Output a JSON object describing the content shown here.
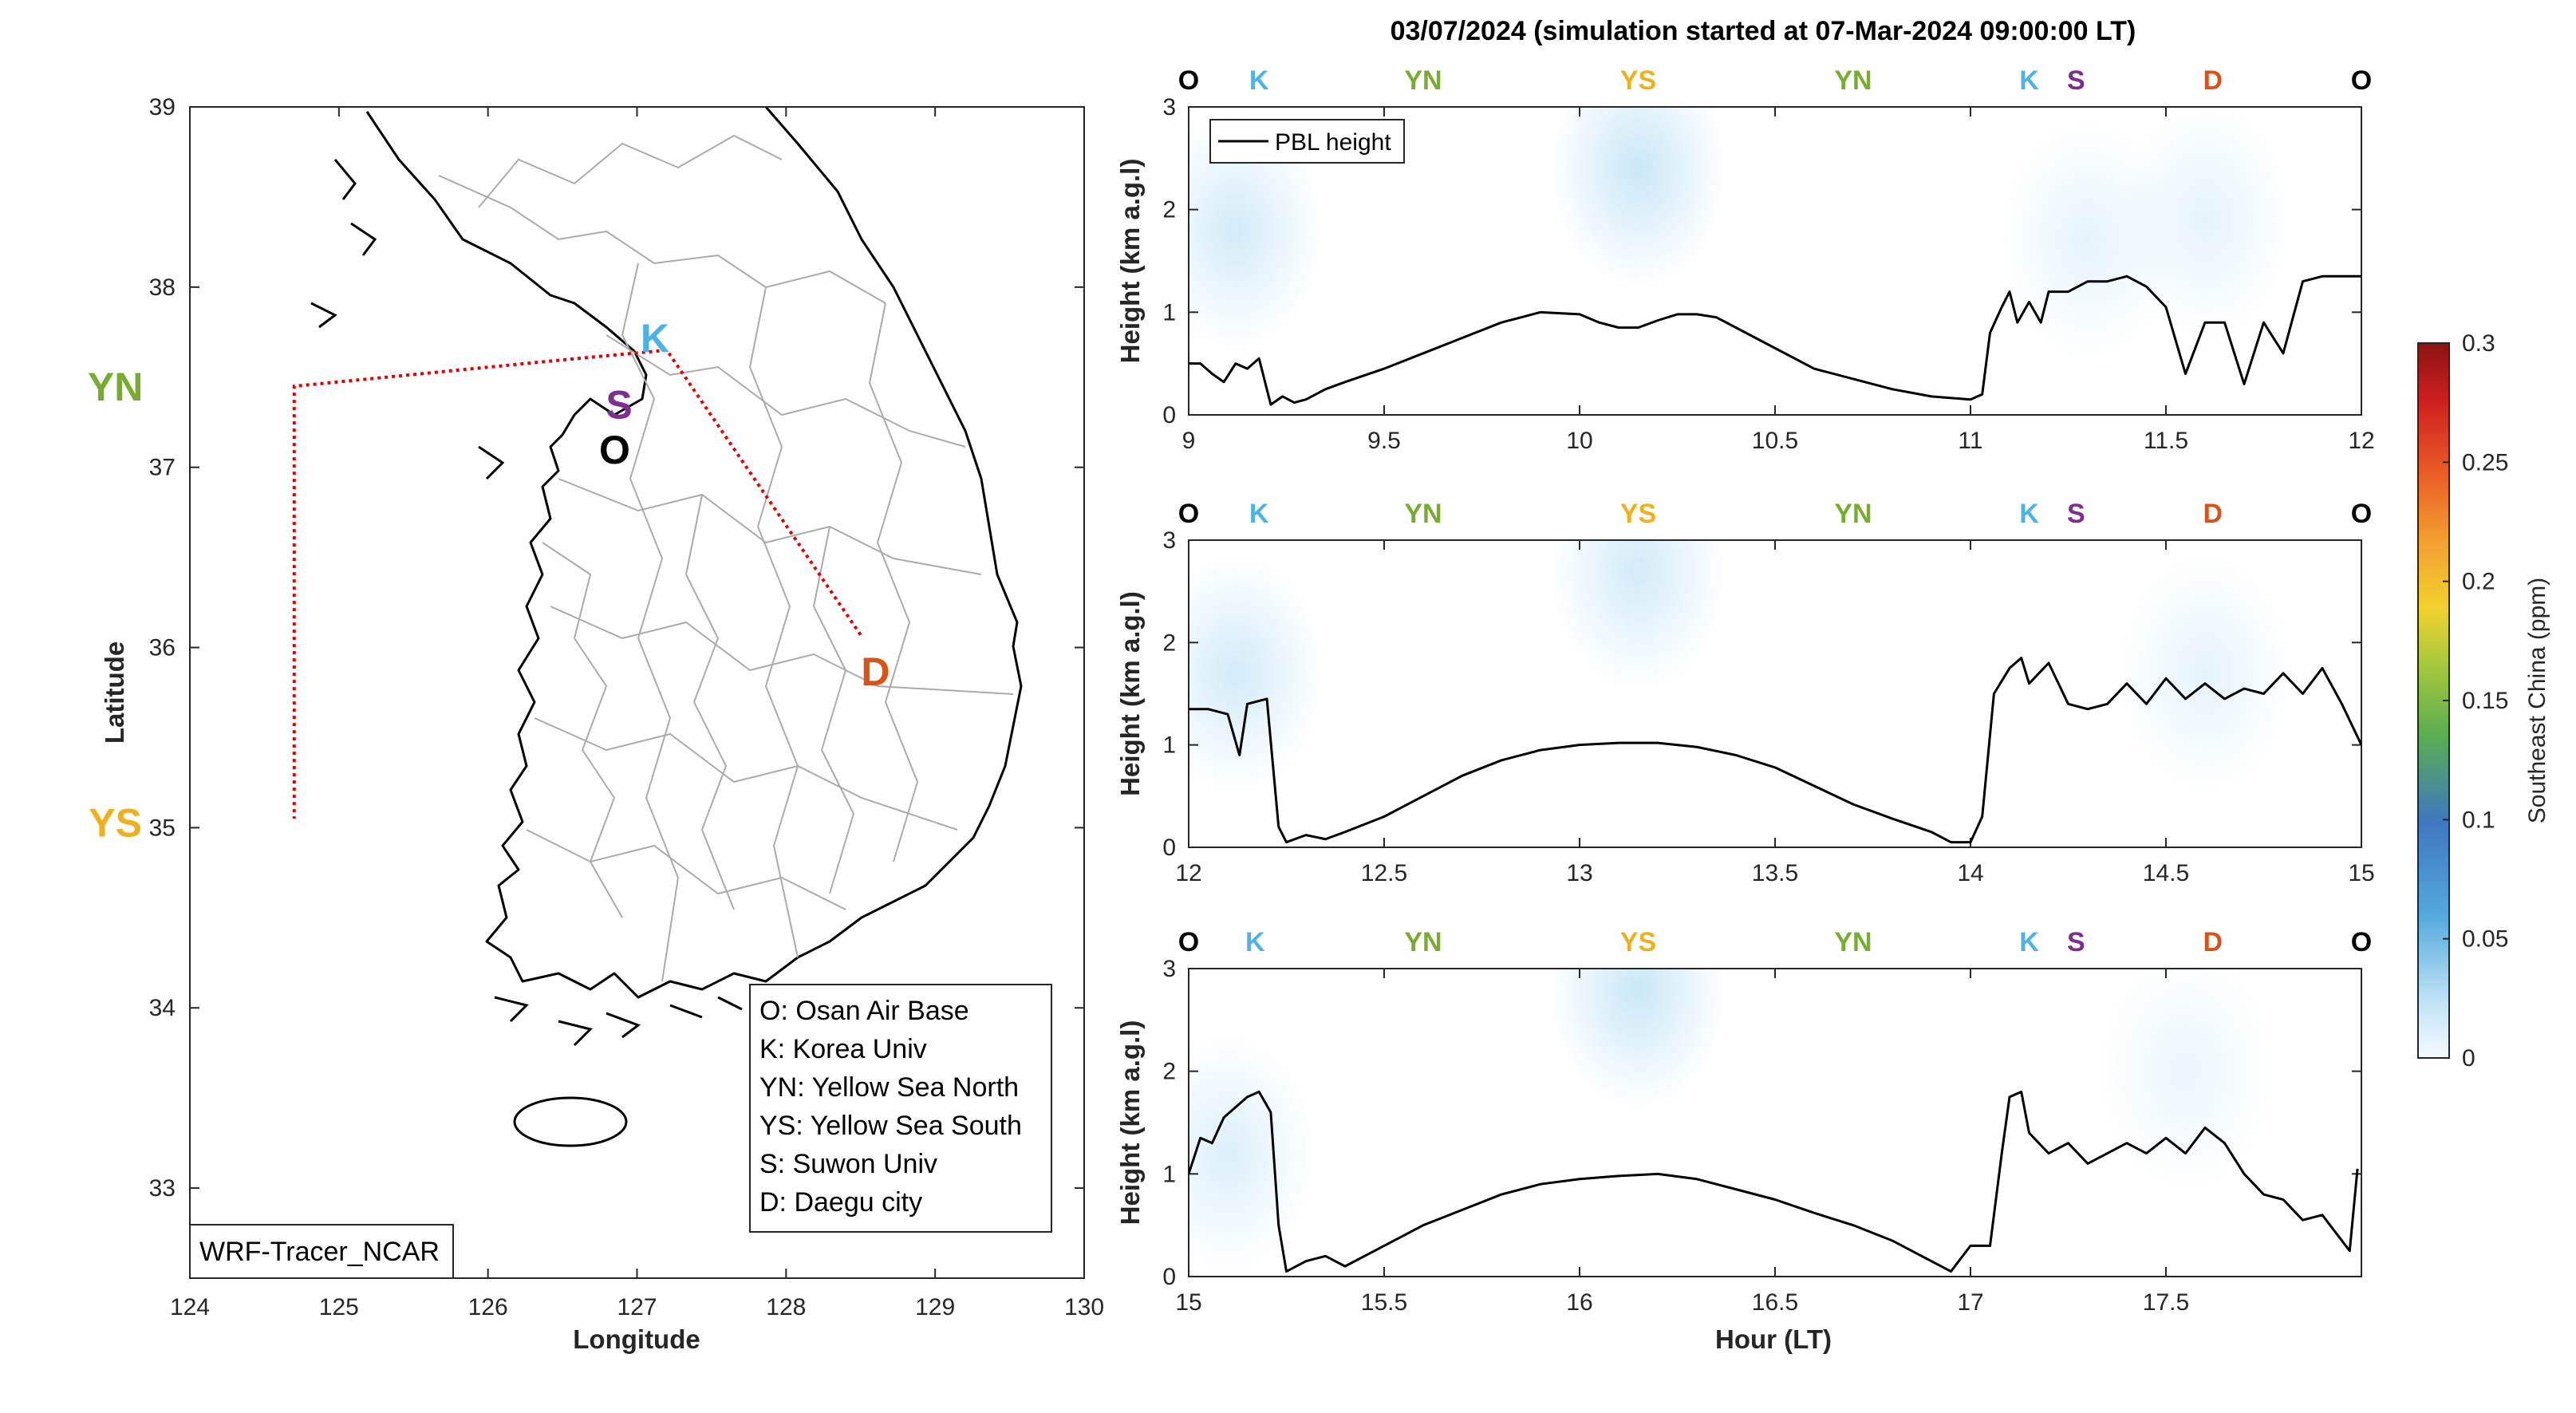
{
  "figure_title": "03/07/2024 (simulation started at 07-Mar-2024 09:00:00 LT)",
  "colors": {
    "O": "#000000",
    "K": "#4db3e6",
    "YN": "#77ac30",
    "YS": "#edb120",
    "S": "#7e2f8e",
    "D": "#d95319",
    "track": "#e00000",
    "pbl": "#000000"
  },
  "map": {
    "xlabel": "Longitude",
    "ylabel": "Latitude",
    "xticks": [
      "124",
      "125",
      "126",
      "127",
      "128",
      "129",
      "130"
    ],
    "yticks": [
      "33",
      "34",
      "35",
      "36",
      "37",
      "38",
      "39"
    ],
    "xlim": [
      124,
      130
    ],
    "ylim": [
      32.5,
      39
    ],
    "source_label": "WRF-Tracer_NCAR",
    "sites": [
      {
        "code": "O",
        "lon": 126.85,
        "lat": 37.1
      },
      {
        "code": "K",
        "lon": 127.12,
        "lat": 37.72
      },
      {
        "code": "YN",
        "lon": 123.5,
        "lat": 37.45
      },
      {
        "code": "YS",
        "lon": 123.5,
        "lat": 35.03
      },
      {
        "code": "S",
        "lon": 126.88,
        "lat": 37.35
      },
      {
        "code": "D",
        "lon": 128.6,
        "lat": 35.87
      }
    ],
    "flight_track": [
      [
        128.5,
        36.07
      ],
      [
        127.2,
        37.65
      ],
      [
        126.55,
        37.6
      ],
      [
        124.7,
        37.45
      ],
      [
        124.7,
        35.05
      ]
    ],
    "legend": [
      "O: Osan Air Base",
      "K: Korea Univ",
      "YN: Yellow Sea North",
      "YS: Yellow Sea South",
      "S: Suwon Univ",
      "D: Daegu city"
    ]
  },
  "chart_data": [
    {
      "type": "line",
      "panel": "top",
      "ylabel": "Height (km a.g.l)",
      "xlabel": "",
      "xlim": [
        9,
        12
      ],
      "ylim": [
        0,
        3
      ],
      "xticks": [
        "9",
        "9.5",
        "10",
        "10.5",
        "11",
        "11.5",
        "12"
      ],
      "yticks": [
        "0",
        "1",
        "2",
        "3"
      ],
      "legend": [
        "PBL height"
      ],
      "site_markers": [
        {
          "label": "O",
          "x": 9.0
        },
        {
          "label": "K",
          "x": 9.18
        },
        {
          "label": "YN",
          "x": 9.6
        },
        {
          "label": "YS",
          "x": 10.15
        },
        {
          "label": "YN",
          "x": 10.7
        },
        {
          "label": "K",
          "x": 11.15
        },
        {
          "label": "S",
          "x": 11.27
        },
        {
          "label": "D",
          "x": 11.62
        },
        {
          "label": "O",
          "x": 12.0
        }
      ],
      "tracer_patches": [
        {
          "x": 9.12,
          "y": 1.8,
          "v": 0.025
        },
        {
          "x": 10.15,
          "y": 2.4,
          "v": 0.03
        },
        {
          "x": 11.3,
          "y": 1.7,
          "v": 0.015
        },
        {
          "x": 11.6,
          "y": 1.9,
          "v": 0.015
        }
      ],
      "series": [
        {
          "name": "PBL height",
          "x": [
            9.0,
            9.03,
            9.06,
            9.09,
            9.12,
            9.15,
            9.18,
            9.21,
            9.24,
            9.27,
            9.3,
            9.35,
            9.4,
            9.5,
            9.6,
            9.7,
            9.8,
            9.9,
            10.0,
            10.05,
            10.1,
            10.15,
            10.2,
            10.25,
            10.3,
            10.35,
            10.4,
            10.5,
            10.6,
            10.7,
            10.8,
            10.9,
            11.0,
            11.03,
            11.05,
            11.08,
            11.1,
            11.12,
            11.15,
            11.18,
            11.2,
            11.25,
            11.3,
            11.35,
            11.4,
            11.45,
            11.5,
            11.55,
            11.6,
            11.65,
            11.7,
            11.75,
            11.8,
            11.85,
            11.9,
            11.95,
            12.0
          ],
          "values": [
            0.5,
            0.5,
            0.4,
            0.32,
            0.5,
            0.45,
            0.55,
            0.1,
            0.18,
            0.12,
            0.15,
            0.25,
            0.32,
            0.45,
            0.6,
            0.75,
            0.9,
            1.0,
            0.98,
            0.9,
            0.85,
            0.85,
            0.92,
            0.98,
            0.98,
            0.95,
            0.85,
            0.65,
            0.45,
            0.35,
            0.25,
            0.18,
            0.15,
            0.2,
            0.8,
            1.05,
            1.2,
            0.9,
            1.1,
            0.9,
            1.2,
            1.2,
            1.3,
            1.3,
            1.35,
            1.25,
            1.05,
            0.4,
            0.9,
            0.9,
            0.3,
            0.9,
            0.6,
            1.3,
            1.35,
            1.35,
            1.35
          ]
        }
      ]
    },
    {
      "type": "line",
      "panel": "middle",
      "ylabel": "Height (km a.g.l)",
      "xlabel": "",
      "xlim": [
        12,
        15
      ],
      "ylim": [
        0,
        3
      ],
      "xticks": [
        "12",
        "12.5",
        "13",
        "13.5",
        "14",
        "14.5",
        "15"
      ],
      "yticks": [
        "0",
        "1",
        "2",
        "3"
      ],
      "legend": [],
      "site_markers": [
        {
          "label": "O",
          "x": 12.0
        },
        {
          "label": "K",
          "x": 12.18
        },
        {
          "label": "YN",
          "x": 12.6
        },
        {
          "label": "YS",
          "x": 13.15
        },
        {
          "label": "YN",
          "x": 13.7
        },
        {
          "label": "K",
          "x": 14.15
        },
        {
          "label": "S",
          "x": 14.27
        },
        {
          "label": "D",
          "x": 14.62
        },
        {
          "label": "O",
          "x": 15.0
        }
      ],
      "tracer_patches": [
        {
          "x": 12.12,
          "y": 1.7,
          "v": 0.025
        },
        {
          "x": 13.15,
          "y": 2.7,
          "v": 0.025
        },
        {
          "x": 14.6,
          "y": 1.7,
          "v": 0.015
        }
      ],
      "series": [
        {
          "name": "PBL height",
          "x": [
            12.0,
            12.05,
            12.1,
            12.13,
            12.15,
            12.2,
            12.23,
            12.25,
            12.3,
            12.35,
            12.4,
            12.5,
            12.6,
            12.7,
            12.8,
            12.9,
            13.0,
            13.1,
            13.2,
            13.3,
            13.4,
            13.5,
            13.6,
            13.7,
            13.8,
            13.9,
            13.95,
            14.0,
            14.03,
            14.06,
            14.1,
            14.13,
            14.15,
            14.2,
            14.25,
            14.3,
            14.35,
            14.4,
            14.45,
            14.5,
            14.55,
            14.6,
            14.65,
            14.7,
            14.75,
            14.8,
            14.85,
            14.9,
            14.95,
            15.0
          ],
          "values": [
            1.35,
            1.35,
            1.3,
            0.9,
            1.4,
            1.45,
            0.2,
            0.05,
            0.12,
            0.08,
            0.15,
            0.3,
            0.5,
            0.7,
            0.85,
            0.95,
            1.0,
            1.02,
            1.02,
            0.98,
            0.9,
            0.78,
            0.6,
            0.42,
            0.28,
            0.15,
            0.05,
            0.05,
            0.3,
            1.5,
            1.75,
            1.85,
            1.6,
            1.8,
            1.4,
            1.35,
            1.4,
            1.6,
            1.4,
            1.65,
            1.45,
            1.6,
            1.45,
            1.55,
            1.5,
            1.7,
            1.5,
            1.75,
            1.4,
            1.0
          ]
        }
      ]
    },
    {
      "type": "line",
      "panel": "bottom",
      "ylabel": "Height (km a.g.l)",
      "xlabel": "Hour (LT)",
      "xlim": [
        15,
        18
      ],
      "ylim": [
        0,
        3
      ],
      "xticks": [
        "15",
        "15.5",
        "16",
        "16.5",
        "17",
        "17.5"
      ],
      "yticks": [
        "0",
        "1",
        "2",
        "3"
      ],
      "legend": [],
      "site_markers": [
        {
          "label": "O",
          "x": 15.0
        },
        {
          "label": "K",
          "x": 15.17
        },
        {
          "label": "YN",
          "x": 15.6
        },
        {
          "label": "YS",
          "x": 16.15
        },
        {
          "label": "YN",
          "x": 16.7
        },
        {
          "label": "K",
          "x": 17.15
        },
        {
          "label": "S",
          "x": 17.27
        },
        {
          "label": "D",
          "x": 17.62
        },
        {
          "label": "O",
          "x": 18.0
        }
      ],
      "tracer_patches": [
        {
          "x": 15.1,
          "y": 1.2,
          "v": 0.02
        },
        {
          "x": 16.15,
          "y": 2.8,
          "v": 0.03
        },
        {
          "x": 17.55,
          "y": 2.0,
          "v": 0.012
        }
      ],
      "series": [
        {
          "name": "PBL height",
          "x": [
            15.0,
            15.03,
            15.06,
            15.09,
            15.12,
            15.15,
            15.18,
            15.21,
            15.23,
            15.25,
            15.3,
            15.35,
            15.4,
            15.5,
            15.6,
            15.7,
            15.8,
            15.9,
            16.0,
            16.1,
            16.2,
            16.3,
            16.4,
            16.5,
            16.6,
            16.7,
            16.8,
            16.9,
            16.95,
            17.0,
            17.05,
            17.08,
            17.1,
            17.13,
            17.15,
            17.2,
            17.25,
            17.3,
            17.35,
            17.4,
            17.45,
            17.5,
            17.55,
            17.6,
            17.65,
            17.7,
            17.75,
            17.8,
            17.85,
            17.9,
            17.95,
            17.97,
            17.99
          ],
          "values": [
            1.0,
            1.35,
            1.3,
            1.55,
            1.65,
            1.75,
            1.8,
            1.6,
            0.5,
            0.05,
            0.15,
            0.2,
            0.1,
            0.3,
            0.5,
            0.65,
            0.8,
            0.9,
            0.95,
            0.98,
            1.0,
            0.95,
            0.85,
            0.75,
            0.62,
            0.5,
            0.35,
            0.15,
            0.05,
            0.3,
            0.3,
            1.2,
            1.75,
            1.8,
            1.4,
            1.2,
            1.3,
            1.1,
            1.2,
            1.3,
            1.2,
            1.35,
            1.2,
            1.45,
            1.3,
            1.0,
            0.8,
            0.75,
            0.55,
            0.6,
            0.35,
            0.25,
            1.05
          ]
        }
      ]
    }
  ],
  "colorbar": {
    "label": "Southeast China (ppm)",
    "ticks": [
      "0",
      "0.05",
      "0.1",
      "0.15",
      "0.2",
      "0.25",
      "0.3"
    ],
    "min": 0,
    "max": 0.3
  }
}
